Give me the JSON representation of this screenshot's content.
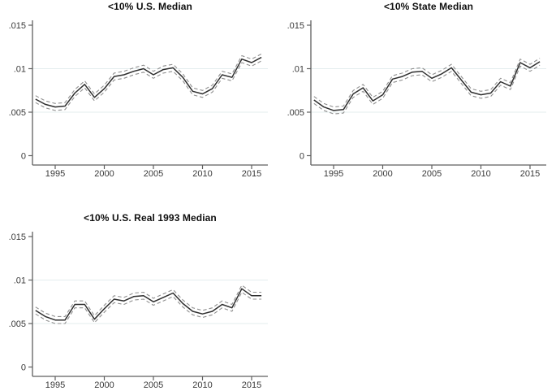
{
  "figure": {
    "background": "#ffffff",
    "axis_color": "#5f5f5f",
    "tick_label_color": "#3a3a3a",
    "title_color": "#0f0f0f",
    "grid_color": "#e3edee",
    "estimate_line_color": "#2e2e2e",
    "ci_line_color": "#8f8f8f"
  },
  "chart_data": [
    {
      "type": "line",
      "title": "<10% U.S. Median",
      "x": [
        1993,
        1994,
        1995,
        1996,
        1997,
        1998,
        1999,
        2000,
        2001,
        2002,
        2003,
        2004,
        2005,
        2006,
        2007,
        2008,
        2009,
        2010,
        2011,
        2012,
        2013,
        2014,
        2015,
        2016
      ],
      "series": [
        {
          "name": "estimate",
          "style": "solid",
          "values": [
            0.0065,
            0.0059,
            0.0056,
            0.0057,
            0.0072,
            0.0082,
            0.0067,
            0.0077,
            0.0091,
            0.0093,
            0.0097,
            0.01,
            0.0093,
            0.0099,
            0.0101,
            0.009,
            0.0074,
            0.0071,
            0.0077,
            0.0093,
            0.009,
            0.0111,
            0.0107,
            0.0113
          ]
        },
        {
          "name": "ci-upper",
          "style": "dashed",
          "values": [
            0.0069,
            0.0063,
            0.006,
            0.0061,
            0.0076,
            0.0086,
            0.0071,
            0.0081,
            0.0095,
            0.0097,
            0.0101,
            0.0104,
            0.0097,
            0.0103,
            0.0105,
            0.0094,
            0.0078,
            0.0075,
            0.0081,
            0.0097,
            0.0094,
            0.0115,
            0.0111,
            0.0117
          ]
        },
        {
          "name": "ci-lower",
          "style": "dashed",
          "values": [
            0.0061,
            0.0055,
            0.0052,
            0.0053,
            0.0068,
            0.0078,
            0.0063,
            0.0073,
            0.0087,
            0.0089,
            0.0093,
            0.0096,
            0.0089,
            0.0095,
            0.0097,
            0.0086,
            0.007,
            0.0067,
            0.0073,
            0.0089,
            0.0086,
            0.0107,
            0.0103,
            0.0109
          ]
        }
      ],
      "xticks": [
        1995,
        2000,
        2005,
        2010,
        2015
      ],
      "ytick_values": [
        0,
        0.005,
        0.01,
        0.015
      ],
      "ytick_labels": [
        "0",
        ".005",
        ".01",
        ".015"
      ],
      "ylim": [
        0,
        0.016
      ],
      "xlim": [
        1993,
        2016
      ],
      "grid_y": [
        0.005,
        0.01
      ],
      "legend": "none"
    },
    {
      "type": "line",
      "title": "<10% State Median",
      "x": [
        1993,
        1994,
        1995,
        1996,
        1997,
        1998,
        1999,
        2000,
        2001,
        2002,
        2003,
        2004,
        2005,
        2006,
        2007,
        2008,
        2009,
        2010,
        2011,
        2012,
        2013,
        2014,
        2015,
        2016
      ],
      "series": [
        {
          "name": "estimate",
          "style": "solid",
          "values": [
            0.0064,
            0.0056,
            0.0052,
            0.0053,
            0.0071,
            0.0078,
            0.0063,
            0.007,
            0.0088,
            0.0091,
            0.0096,
            0.0097,
            0.0089,
            0.0094,
            0.0101,
            0.0087,
            0.0073,
            0.007,
            0.0072,
            0.0085,
            0.008,
            0.0107,
            0.0101,
            0.0108
          ]
        },
        {
          "name": "ci-upper",
          "style": "dashed",
          "values": [
            0.0068,
            0.006,
            0.0056,
            0.0057,
            0.0075,
            0.0082,
            0.0067,
            0.0074,
            0.0092,
            0.0095,
            0.01,
            0.0101,
            0.0093,
            0.0098,
            0.0105,
            0.0091,
            0.0077,
            0.0074,
            0.0076,
            0.0089,
            0.0084,
            0.0111,
            0.0105,
            0.0112
          ]
        },
        {
          "name": "ci-lower",
          "style": "dashed",
          "values": [
            0.006,
            0.0052,
            0.0048,
            0.0049,
            0.0067,
            0.0074,
            0.0059,
            0.0066,
            0.0084,
            0.0087,
            0.0092,
            0.0093,
            0.0085,
            0.009,
            0.0097,
            0.0083,
            0.0069,
            0.0066,
            0.0068,
            0.0081,
            0.0076,
            0.0103,
            0.0097,
            0.0104
          ]
        }
      ],
      "xticks": [
        1995,
        2000,
        2005,
        2010,
        2015
      ],
      "ytick_values": [
        0,
        0.005,
        0.01,
        0.015
      ],
      "ytick_labels": [
        "0",
        ".005",
        ".01",
        ".015"
      ],
      "ylim": [
        0,
        0.016
      ],
      "xlim": [
        1993,
        2016
      ],
      "grid_y": [
        0.005,
        0.01
      ],
      "legend": "none"
    },
    {
      "type": "line",
      "title": "<10% U.S. Real 1993 Median",
      "x": [
        1993,
        1994,
        1995,
        1996,
        1997,
        1998,
        1999,
        2000,
        2001,
        2002,
        2003,
        2004,
        2005,
        2006,
        2007,
        2008,
        2009,
        2010,
        2011,
        2012,
        2013,
        2014,
        2015,
        2016
      ],
      "series": [
        {
          "name": "estimate",
          "style": "solid",
          "values": [
            0.0065,
            0.0058,
            0.0054,
            0.0054,
            0.0072,
            0.0072,
            0.0055,
            0.0067,
            0.0078,
            0.0076,
            0.0081,
            0.0082,
            0.0075,
            0.008,
            0.0085,
            0.0073,
            0.0064,
            0.0061,
            0.0064,
            0.0072,
            0.0068,
            0.009,
            0.0082,
            0.0082
          ]
        },
        {
          "name": "ci-upper",
          "style": "dashed",
          "values": [
            0.0069,
            0.0062,
            0.0058,
            0.0058,
            0.0076,
            0.0076,
            0.0059,
            0.0071,
            0.0082,
            0.008,
            0.0085,
            0.0086,
            0.0079,
            0.0084,
            0.0089,
            0.0077,
            0.0068,
            0.0065,
            0.0068,
            0.0076,
            0.0072,
            0.0094,
            0.0086,
            0.0086
          ]
        },
        {
          "name": "ci-lower",
          "style": "dashed",
          "values": [
            0.0061,
            0.0054,
            0.005,
            0.005,
            0.0068,
            0.0068,
            0.0051,
            0.0063,
            0.0074,
            0.0072,
            0.0077,
            0.0078,
            0.0071,
            0.0076,
            0.0081,
            0.0069,
            0.006,
            0.0057,
            0.006,
            0.0068,
            0.0064,
            0.0086,
            0.0078,
            0.0078
          ]
        }
      ],
      "xticks": [
        1995,
        2000,
        2005,
        2010,
        2015
      ],
      "ytick_values": [
        0,
        0.005,
        0.01,
        0.015
      ],
      "ytick_labels": [
        "0",
        ".005",
        ".01",
        ".015"
      ],
      "ylim": [
        0,
        0.016
      ],
      "xlim": [
        1993,
        2016
      ],
      "grid_y": [
        0.005,
        0.01
      ],
      "legend": "none"
    }
  ]
}
